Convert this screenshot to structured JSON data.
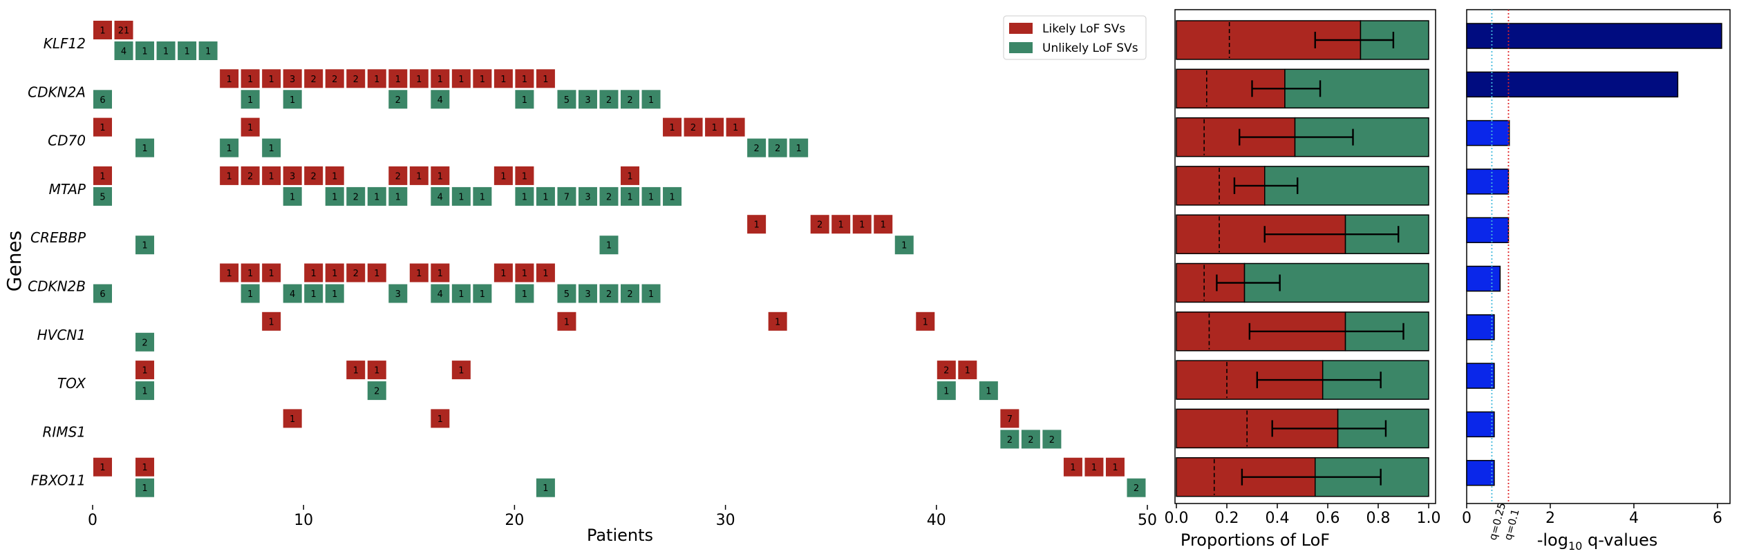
{
  "colors": {
    "likely": "#ac2720",
    "unlikely": "#3b8667",
    "q_strong": "#000c80",
    "q_weak": "#0a27ea",
    "thr_q25": "#44bbdd",
    "thr_q10": "#e0262a"
  },
  "labels": {
    "genes_axis": "Genes",
    "patients_axis": "Patients",
    "proportion_axis": "Proportions of LoF",
    "q_axis_prefix": "-log",
    "q_axis_sub": "10",
    "q_axis_suffix": " q-values",
    "legend_likely": "Likely LoF SVs",
    "legend_unlikely": "Unlikely LoF SVs",
    "q25_label": "q=0.25",
    "q10_label": "q=0.1"
  },
  "chart_data": [
    {
      "type": "heatmap",
      "x_axis": {
        "label": "Patients",
        "range": [
          0,
          50
        ],
        "ticks": [
          0,
          10,
          20,
          30,
          40,
          50
        ]
      },
      "y_axis": {
        "label": "Genes"
      },
      "legend": {
        "placement": "top-right",
        "entries": [
          "Likely LoF SVs",
          "Unlikely LoF SVs"
        ]
      },
      "genes": [
        "KLF12",
        "CDKN2A",
        "CD70",
        "MTAP",
        "CREBBP",
        "CDKN2B",
        "HVCN1",
        "TOX",
        "RIMS1",
        "FBXO11"
      ],
      "cells": [
        {
          "gene": "KLF12",
          "likely": [
            [
              0,
              "1"
            ],
            [
              1,
              "21"
            ]
          ],
          "unlikely": [
            [
              1,
              "4"
            ],
            [
              2,
              "1"
            ],
            [
              3,
              "1"
            ],
            [
              4,
              "1"
            ],
            [
              5,
              "1"
            ]
          ]
        },
        {
          "gene": "CDKN2A",
          "likely": [
            [
              6,
              "1"
            ],
            [
              7,
              "1"
            ],
            [
              8,
              "1"
            ],
            [
              9,
              "3"
            ],
            [
              10,
              "2"
            ],
            [
              11,
              "2"
            ],
            [
              12,
              "2"
            ],
            [
              13,
              "1"
            ],
            [
              14,
              "1"
            ],
            [
              15,
              "1"
            ],
            [
              16,
              "1"
            ],
            [
              17,
              "1"
            ],
            [
              18,
              "1"
            ],
            [
              19,
              "1"
            ],
            [
              20,
              "1"
            ],
            [
              21,
              "1"
            ]
          ],
          "unlikely": [
            [
              0,
              "6"
            ],
            [
              7,
              "1"
            ],
            [
              9,
              "1"
            ],
            [
              14,
              "2"
            ],
            [
              16,
              "4"
            ],
            [
              20,
              "1"
            ],
            [
              22,
              "5"
            ],
            [
              23,
              "3"
            ],
            [
              24,
              "2"
            ],
            [
              25,
              "2"
            ],
            [
              26,
              "1"
            ]
          ]
        },
        {
          "gene": "CD70",
          "likely": [
            [
              0,
              "1"
            ],
            [
              7,
              "1"
            ],
            [
              27,
              "1"
            ],
            [
              28,
              "2"
            ],
            [
              29,
              "1"
            ],
            [
              30,
              "1"
            ]
          ],
          "unlikely": [
            [
              2,
              "1"
            ],
            [
              6,
              "1"
            ],
            [
              8,
              "1"
            ],
            [
              31,
              "2"
            ],
            [
              32,
              "2"
            ],
            [
              33,
              "1"
            ]
          ]
        },
        {
          "gene": "MTAP",
          "likely": [
            [
              0,
              "1"
            ],
            [
              6,
              "1"
            ],
            [
              7,
              "2"
            ],
            [
              8,
              "1"
            ],
            [
              9,
              "3"
            ],
            [
              10,
              "2"
            ],
            [
              11,
              "1"
            ],
            [
              14,
              "2"
            ],
            [
              15,
              "1"
            ],
            [
              16,
              "1"
            ],
            [
              19,
              "1"
            ],
            [
              20,
              "1"
            ],
            [
              25,
              "1"
            ]
          ],
          "unlikely": [
            [
              0,
              "5"
            ],
            [
              9,
              "1"
            ],
            [
              11,
              "1"
            ],
            [
              12,
              "2"
            ],
            [
              13,
              "1"
            ],
            [
              14,
              "1"
            ],
            [
              16,
              "4"
            ],
            [
              17,
              "1"
            ],
            [
              18,
              "1"
            ],
            [
              20,
              "1"
            ],
            [
              21,
              "1"
            ],
            [
              22,
              "7"
            ],
            [
              23,
              "3"
            ],
            [
              24,
              "2"
            ],
            [
              25,
              "1"
            ],
            [
              26,
              "1"
            ],
            [
              27,
              "1"
            ]
          ]
        },
        {
          "gene": "CREBBP",
          "likely": [
            [
              31,
              "1"
            ],
            [
              34,
              "2"
            ],
            [
              35,
              "1"
            ],
            [
              36,
              "1"
            ],
            [
              37,
              "1"
            ]
          ],
          "unlikely": [
            [
              2,
              "1"
            ],
            [
              24,
              "1"
            ],
            [
              38,
              "1"
            ]
          ]
        },
        {
          "gene": "CDKN2B",
          "likely": [
            [
              6,
              "1"
            ],
            [
              7,
              "1"
            ],
            [
              8,
              "1"
            ],
            [
              10,
              "1"
            ],
            [
              11,
              "1"
            ],
            [
              12,
              "2"
            ],
            [
              13,
              "1"
            ],
            [
              15,
              "1"
            ],
            [
              16,
              "1"
            ],
            [
              19,
              "1"
            ],
            [
              20,
              "1"
            ],
            [
              21,
              "1"
            ]
          ],
          "unlikely": [
            [
              0,
              "6"
            ],
            [
              7,
              "1"
            ],
            [
              9,
              "4"
            ],
            [
              10,
              "1"
            ],
            [
              11,
              "1"
            ],
            [
              14,
              "3"
            ],
            [
              16,
              "4"
            ],
            [
              17,
              "1"
            ],
            [
              18,
              "1"
            ],
            [
              20,
              "1"
            ],
            [
              22,
              "5"
            ],
            [
              23,
              "3"
            ],
            [
              24,
              "2"
            ],
            [
              25,
              "2"
            ],
            [
              26,
              "1"
            ]
          ]
        },
        {
          "gene": "HVCN1",
          "likely": [
            [
              8,
              "1"
            ],
            [
              22,
              "1"
            ],
            [
              32,
              "1"
            ],
            [
              39,
              "1"
            ]
          ],
          "unlikely": [
            [
              2,
              "2"
            ]
          ]
        },
        {
          "gene": "TOX",
          "likely": [
            [
              2,
              "1"
            ],
            [
              12,
              "1"
            ],
            [
              13,
              "1"
            ],
            [
              17,
              "1"
            ],
            [
              40,
              "2"
            ],
            [
              41,
              "1"
            ]
          ],
          "unlikely": [
            [
              2,
              "1"
            ],
            [
              13,
              "2"
            ],
            [
              40,
              "1"
            ],
            [
              42,
              "1"
            ]
          ]
        },
        {
          "gene": "RIMS1",
          "likely": [
            [
              9,
              "1"
            ],
            [
              16,
              "1"
            ],
            [
              43,
              "7"
            ]
          ],
          "unlikely": [
            [
              43,
              "2"
            ],
            [
              44,
              "2"
            ],
            [
              45,
              "2"
            ]
          ]
        },
        {
          "gene": "FBXO11",
          "likely": [
            [
              0,
              "1"
            ],
            [
              2,
              "1"
            ],
            [
              46,
              "1"
            ],
            [
              47,
              "1"
            ],
            [
              48,
              "1"
            ]
          ],
          "unlikely": [
            [
              2,
              "1"
            ],
            [
              21,
              "1"
            ],
            [
              49,
              "2"
            ]
          ]
        }
      ]
    },
    {
      "type": "bar",
      "orientation": "horizontal-stacked",
      "xlabel": "Proportions of LoF",
      "xlim": [
        0,
        1
      ],
      "ticks": [
        "0.0",
        "0.2",
        "0.4",
        "0.6",
        "0.8",
        "1.0"
      ],
      "categories": [
        "KLF12",
        "CDKN2A",
        "CD70",
        "MTAP",
        "CREBBP",
        "CDKN2B",
        "HVCN1",
        "TOX",
        "RIMS1",
        "FBXO11"
      ],
      "likely_proportion": [
        0.73,
        0.43,
        0.47,
        0.35,
        0.67,
        0.27,
        0.67,
        0.58,
        0.64,
        0.55
      ],
      "ci_low": [
        0.55,
        0.3,
        0.25,
        0.23,
        0.35,
        0.16,
        0.29,
        0.32,
        0.38,
        0.26
      ],
      "ci_high": [
        0.86,
        0.57,
        0.7,
        0.48,
        0.88,
        0.41,
        0.9,
        0.81,
        0.83,
        0.81
      ],
      "background_rate": [
        0.21,
        0.12,
        0.11,
        0.17,
        0.17,
        0.11,
        0.13,
        0.2,
        0.28,
        0.15
      ]
    },
    {
      "type": "bar",
      "orientation": "horizontal",
      "xlabel": "-log10 q-values",
      "xlim": [
        0,
        6.3
      ],
      "ticks": [
        "0",
        "2",
        "4",
        "6"
      ],
      "categories": [
        "KLF12",
        "CDKN2A",
        "CD70",
        "MTAP",
        "CREBBP",
        "CDKN2B",
        "HVCN1",
        "TOX",
        "RIMS1",
        "FBXO11"
      ],
      "values": [
        6.1,
        5.05,
        1.02,
        1.0,
        1.0,
        0.8,
        0.66,
        0.66,
        0.66,
        0.66
      ],
      "thresholds": [
        {
          "name": "q=0.25",
          "value": 0.602
        },
        {
          "name": "q=0.1",
          "value": 1.0
        }
      ]
    }
  ]
}
